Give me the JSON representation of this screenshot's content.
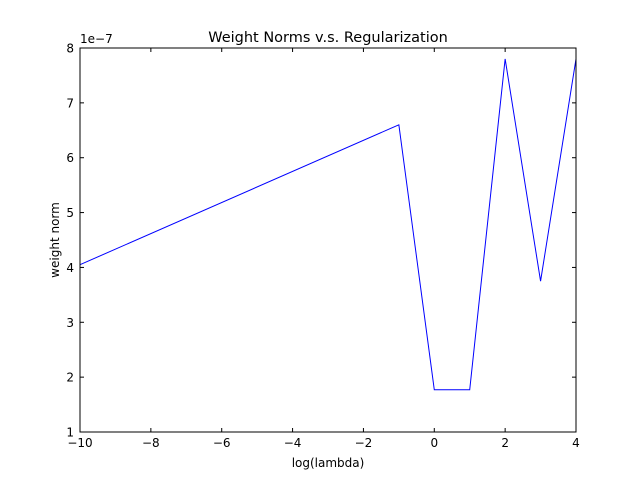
{
  "chart_data": {
    "type": "line",
    "title": "Weight Norms v.s. Regularization",
    "xlabel": "log(lambda)",
    "ylabel": "weight norm",
    "xlim": [
      -10,
      4
    ],
    "ylim": [
      1,
      8
    ],
    "y_offset_text": "1e−7",
    "y_scale_multiplier": 1e-07,
    "grid": false,
    "legend": "none",
    "line_color": "#0000ff",
    "x_ticks": [
      -10,
      -8,
      -6,
      -4,
      -2,
      0,
      2,
      4
    ],
    "x_tick_labels": [
      "−10",
      "−8",
      "−6",
      "−4",
      "−2",
      "0",
      "2",
      "4"
    ],
    "y_ticks": [
      1,
      2,
      3,
      4,
      5,
      6,
      7,
      8
    ],
    "y_tick_labels": [
      "1",
      "2",
      "3",
      "4",
      "5",
      "6",
      "7",
      "8"
    ],
    "series": [
      {
        "x": [
          -10,
          -1,
          0,
          1,
          2,
          3,
          4
        ],
        "y": [
          4.05,
          6.6,
          1.77,
          1.77,
          7.8,
          3.75,
          7.8
        ]
      }
    ]
  }
}
